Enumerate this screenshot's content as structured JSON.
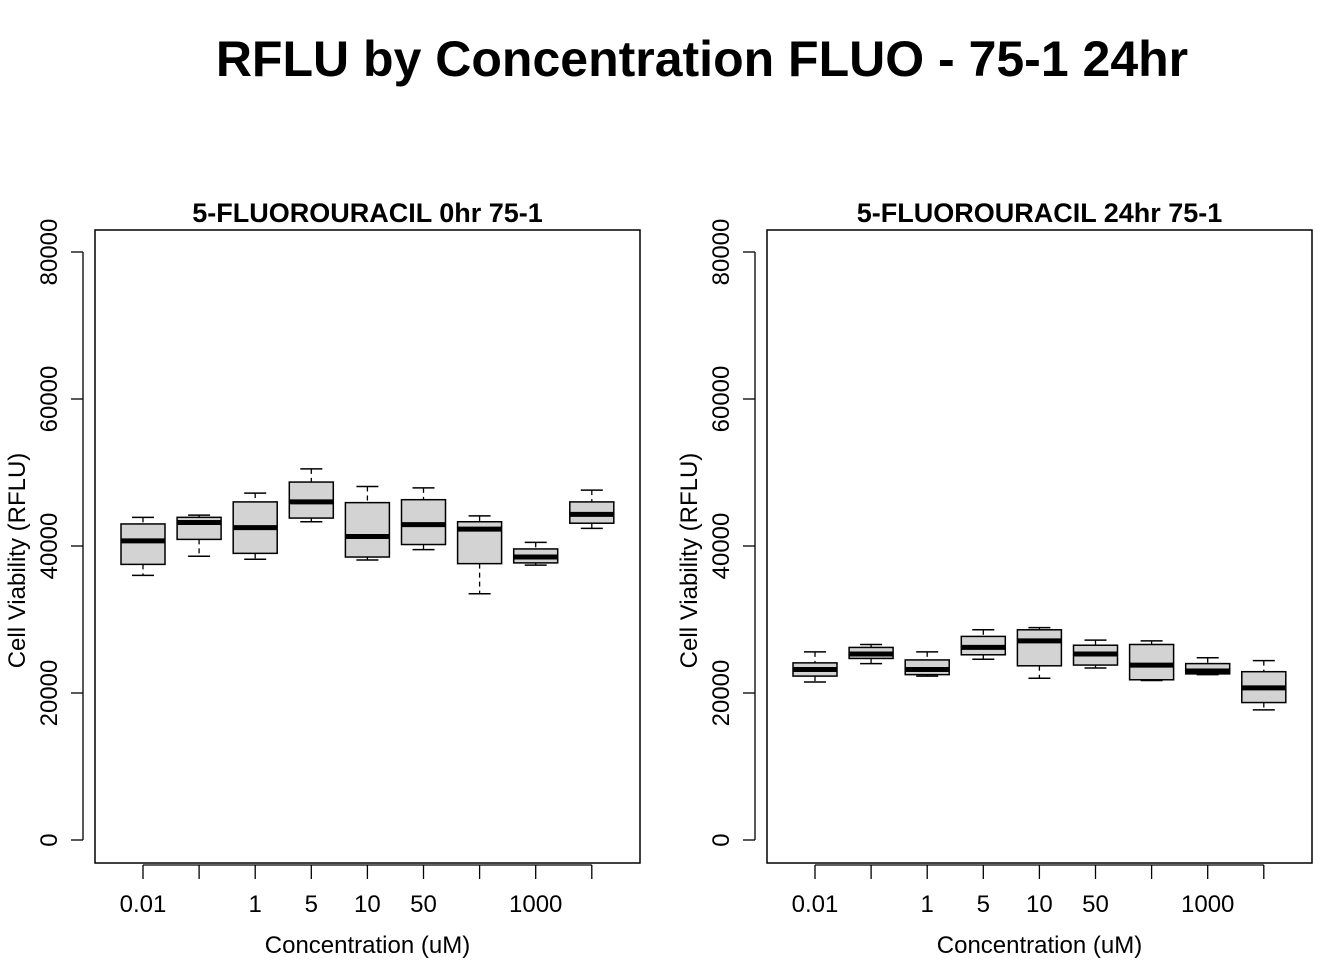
{
  "figure": {
    "title": "RFLU by Concentration FLUO - 75-1 24hr"
  },
  "chart_data": [
    {
      "type": "boxplot",
      "title": "5-FLUOROURACIL 0hr 75-1",
      "xlabel": "Concentration (uM)",
      "ylabel": "Cell Viability (RFLU)",
      "ylim": [
        0,
        80000
      ],
      "yticks": [
        0,
        20000,
        40000,
        60000,
        80000
      ],
      "x_tick_labels": [
        "0.01",
        "",
        "1",
        "5",
        "10",
        "50",
        "",
        "1000",
        ""
      ],
      "boxes": [
        {
          "min": 36000,
          "q1": 37500,
          "median": 40700,
          "q3": 43000,
          "max": 43900,
          "outliers": []
        },
        {
          "min": 38600,
          "q1": 40900,
          "median": 43200,
          "q3": 43900,
          "max": 44200,
          "outliers": []
        },
        {
          "min": 38200,
          "q1": 39000,
          "median": 42500,
          "q3": 46000,
          "max": 47200,
          "outliers": []
        },
        {
          "min": 43300,
          "q1": 43800,
          "median": 46000,
          "q3": 48700,
          "max": 50500,
          "outliers": []
        },
        {
          "min": 38100,
          "q1": 38500,
          "median": 41300,
          "q3": 45900,
          "max": 48100,
          "outliers": []
        },
        {
          "min": 39500,
          "q1": 40200,
          "median": 42900,
          "q3": 46300,
          "max": 47900,
          "outliers": []
        },
        {
          "min": 33500,
          "q1": 37600,
          "median": 42300,
          "q3": 43300,
          "max": 44100,
          "outliers": []
        },
        {
          "min": 37400,
          "q1": 37700,
          "median": 38500,
          "q3": 39600,
          "max": 40500,
          "outliers": []
        },
        {
          "min": 42400,
          "q1": 43100,
          "median": 44300,
          "q3": 46000,
          "max": 47600,
          "outliers": []
        }
      ]
    },
    {
      "type": "boxplot",
      "title": "5-FLUOROURACIL 24hr 75-1",
      "xlabel": "Concentration (uM)",
      "ylabel": "Cell Viability (RFLU)",
      "ylim": [
        0,
        80000
      ],
      "yticks": [
        0,
        20000,
        40000,
        60000,
        80000
      ],
      "x_tick_labels": [
        "0.01",
        "",
        "1",
        "5",
        "10",
        "50",
        "",
        "1000",
        ""
      ],
      "boxes": [
        {
          "min": 21500,
          "q1": 22300,
          "median": 23200,
          "q3": 24100,
          "max": 25600,
          "outliers": []
        },
        {
          "min": 24000,
          "q1": 24700,
          "median": 25300,
          "q3": 26200,
          "max": 26600,
          "outliers": []
        },
        {
          "min": 22300,
          "q1": 22500,
          "median": 23200,
          "q3": 24500,
          "max": 25600,
          "outliers": []
        },
        {
          "min": 24600,
          "q1": 25200,
          "median": 26200,
          "q3": 27700,
          "max": 28600,
          "outliers": []
        },
        {
          "min": 22000,
          "q1": 23700,
          "median": 27100,
          "q3": 28600,
          "max": 28900,
          "outliers": []
        },
        {
          "min": 23400,
          "q1": 23800,
          "median": 25300,
          "q3": 26500,
          "max": 27200,
          "outliers": []
        },
        {
          "min": 21700,
          "q1": 21800,
          "median": 23800,
          "q3": 26600,
          "max": 27100,
          "outliers": []
        },
        {
          "min": 22500,
          "q1": 22600,
          "median": 23000,
          "q3": 24000,
          "max": 24800,
          "outliers": []
        },
        {
          "min": 17700,
          "q1": 18700,
          "median": 20700,
          "q3": 22900,
          "max": 24400,
          "outliers": []
        }
      ]
    }
  ],
  "colors": {
    "box_fill": "#d3d3d3",
    "stroke": "#000000",
    "background": "#ffffff"
  }
}
